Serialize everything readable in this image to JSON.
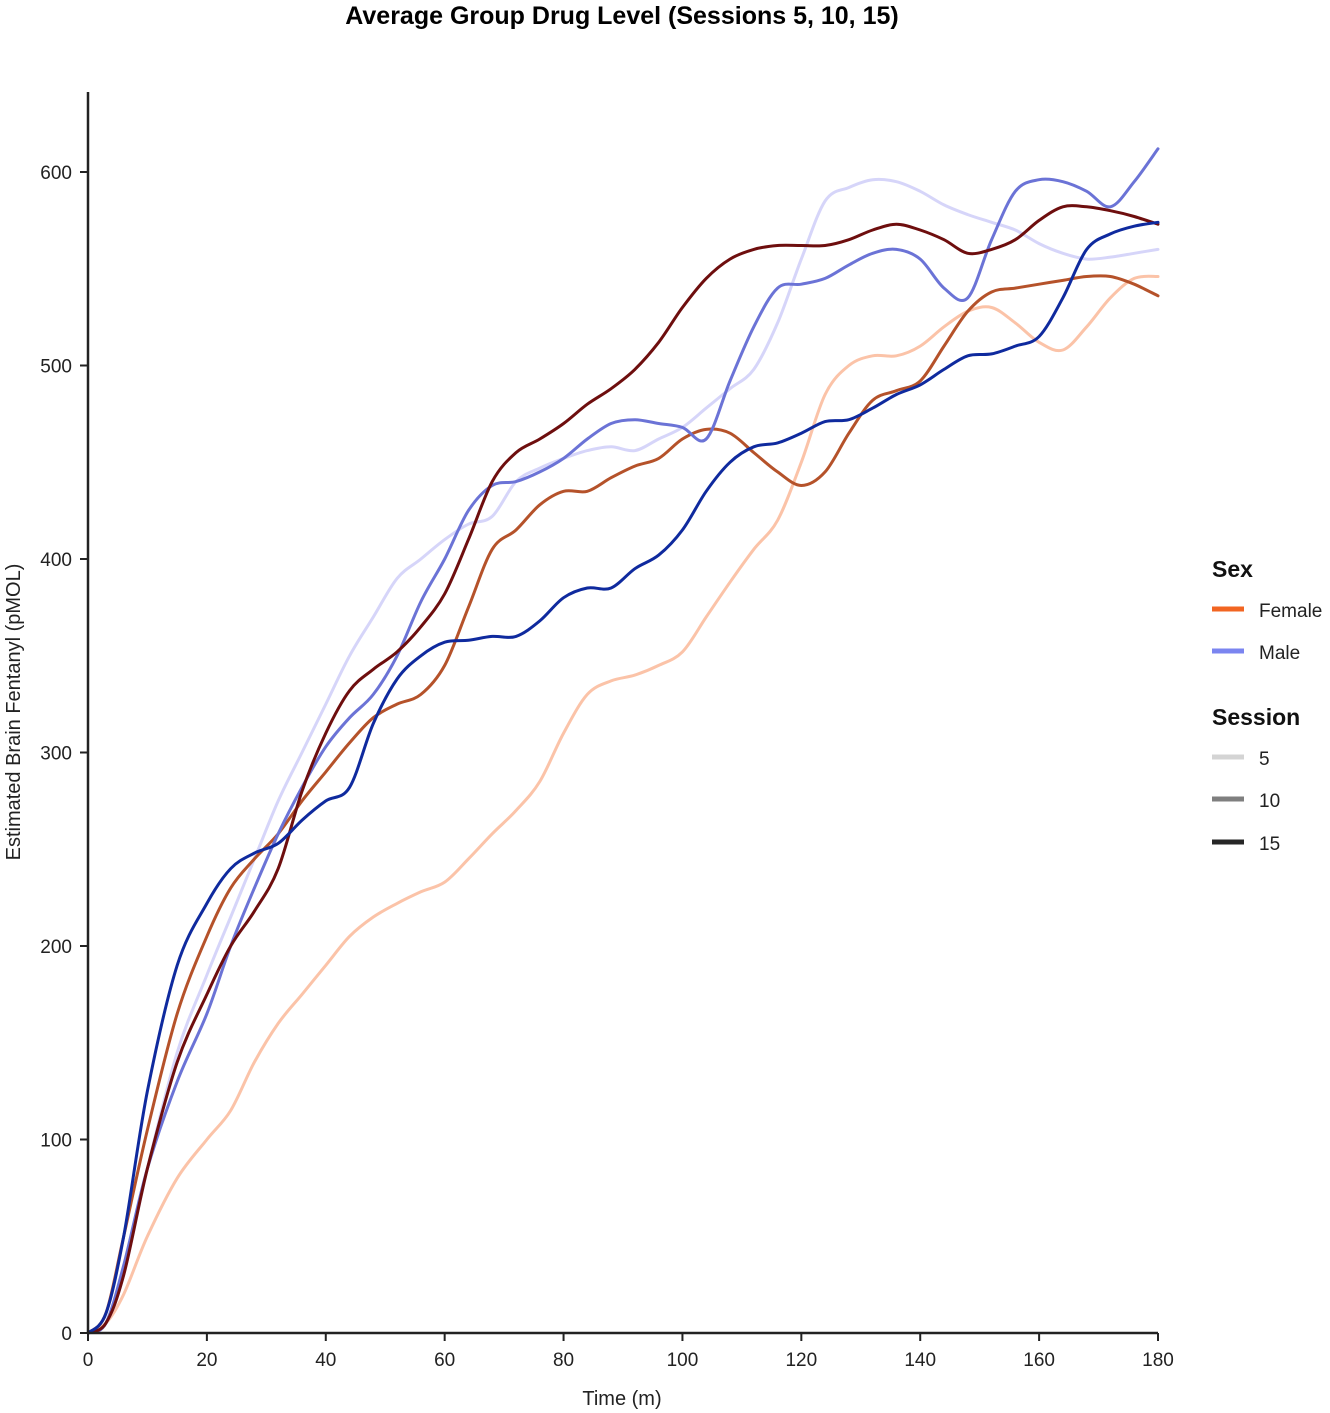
{
  "chart_data": {
    "type": "line",
    "title": "Average Group Drug Level (Sessions 5, 10, 15)",
    "xlabel": "Time (m)",
    "ylabel": "Estimated Brain Fentanyl (pMOL)",
    "xlim": [
      0,
      180
    ],
    "ylim": [
      0,
      640
    ],
    "xticks": [
      0,
      20,
      40,
      60,
      80,
      100,
      120,
      140,
      160,
      180
    ],
    "yticks": [
      0,
      100,
      200,
      300,
      400,
      500,
      600
    ],
    "grid": false,
    "legend_position": "right",
    "legend": {
      "sex_title": "Sex",
      "sex_items": [
        {
          "label": "Female",
          "color": "#f26522"
        },
        {
          "label": "Male",
          "color": "#7b85f0"
        }
      ],
      "session_title": "Session",
      "session_items": [
        {
          "label": "5",
          "color": "#d4d4d4"
        },
        {
          "label": "10",
          "color": "#7f7f7f"
        },
        {
          "label": "15",
          "color": "#262626"
        }
      ]
    },
    "series": [
      {
        "sex": "Female",
        "session": "5",
        "color": "#fbc3a8",
        "x": [
          0,
          3,
          6,
          10,
          15,
          20,
          24,
          28,
          32,
          36,
          40,
          44,
          48,
          52,
          56,
          60,
          64,
          68,
          72,
          76,
          80,
          84,
          88,
          92,
          96,
          100,
          104,
          108,
          112,
          116,
          120,
          124,
          128,
          132,
          136,
          140,
          144,
          148,
          152,
          156,
          160,
          164,
          168,
          172,
          176,
          180
        ],
        "y": [
          0,
          5,
          20,
          50,
          80,
          100,
          115,
          140,
          160,
          175,
          190,
          205,
          215,
          222,
          228,
          233,
          245,
          258,
          270,
          285,
          310,
          330,
          337,
          340,
          345,
          352,
          370,
          388,
          405,
          420,
          450,
          485,
          500,
          505,
          505,
          510,
          520,
          528,
          530,
          522,
          512,
          508,
          520,
          535,
          545,
          546
        ]
      },
      {
        "sex": "Male",
        "session": "5",
        "color": "#d6d5f9",
        "x": [
          0,
          3,
          6,
          10,
          15,
          20,
          24,
          28,
          32,
          36,
          40,
          44,
          48,
          52,
          56,
          60,
          64,
          68,
          72,
          76,
          80,
          84,
          88,
          92,
          96,
          100,
          104,
          108,
          112,
          116,
          120,
          124,
          128,
          132,
          136,
          140,
          144,
          148,
          152,
          156,
          160,
          164,
          168,
          172,
          176,
          180
        ],
        "y": [
          0,
          5,
          30,
          85,
          145,
          185,
          215,
          245,
          275,
          300,
          325,
          350,
          370,
          390,
          400,
          410,
          418,
          422,
          440,
          447,
          452,
          456,
          458,
          456,
          462,
          468,
          478,
          488,
          498,
          522,
          555,
          585,
          592,
          596,
          595,
          590,
          583,
          578,
          574,
          570,
          563,
          558,
          555,
          556,
          558,
          560
        ]
      },
      {
        "sex": "Female",
        "session": "10",
        "color": "#b5522a",
        "x": [
          0,
          3,
          6,
          10,
          15,
          20,
          24,
          28,
          32,
          36,
          40,
          44,
          48,
          52,
          56,
          60,
          64,
          68,
          72,
          76,
          80,
          84,
          88,
          92,
          96,
          100,
          104,
          108,
          112,
          116,
          120,
          124,
          128,
          132,
          136,
          140,
          144,
          148,
          152,
          156,
          160,
          164,
          168,
          172,
          176,
          180
        ],
        "y": [
          0,
          10,
          50,
          105,
          165,
          205,
          230,
          245,
          258,
          275,
          290,
          305,
          318,
          325,
          330,
          345,
          375,
          405,
          415,
          428,
          435,
          435,
          442,
          448,
          452,
          462,
          467,
          465,
          455,
          445,
          438,
          445,
          465,
          482,
          487,
          492,
          510,
          528,
          538,
          540,
          542,
          544,
          546,
          546,
          542,
          536
        ]
      },
      {
        "sex": "Male",
        "session": "10",
        "color": "#6b73d6",
        "x": [
          0,
          3,
          6,
          10,
          15,
          20,
          24,
          28,
          32,
          36,
          40,
          44,
          48,
          52,
          56,
          60,
          64,
          68,
          72,
          76,
          80,
          84,
          88,
          92,
          96,
          100,
          104,
          108,
          112,
          116,
          120,
          124,
          128,
          132,
          136,
          140,
          144,
          148,
          152,
          156,
          160,
          164,
          168,
          172,
          176,
          180
        ],
        "y": [
          0,
          5,
          35,
          85,
          130,
          165,
          200,
          230,
          258,
          282,
          303,
          318,
          330,
          350,
          378,
          400,
          425,
          438,
          440,
          445,
          452,
          462,
          470,
          472,
          470,
          468,
          462,
          492,
          520,
          540,
          542,
          545,
          552,
          558,
          560,
          555,
          540,
          535,
          565,
          590,
          596,
          595,
          590,
          582,
          595,
          612
        ]
      },
      {
        "sex": "Female",
        "session": "15",
        "color": "#6e0e0e",
        "x": [
          0,
          3,
          6,
          10,
          15,
          20,
          24,
          28,
          32,
          36,
          40,
          44,
          48,
          52,
          56,
          60,
          64,
          68,
          72,
          76,
          80,
          84,
          88,
          92,
          96,
          100,
          104,
          108,
          112,
          116,
          120,
          124,
          128,
          132,
          136,
          140,
          144,
          148,
          152,
          156,
          160,
          164,
          168,
          172,
          176,
          180
        ],
        "y": [
          0,
          5,
          30,
          85,
          140,
          175,
          200,
          218,
          240,
          280,
          310,
          332,
          343,
          352,
          365,
          382,
          410,
          440,
          455,
          462,
          470,
          480,
          488,
          498,
          512,
          530,
          545,
          555,
          560,
          562,
          562,
          562,
          565,
          570,
          573,
          570,
          565,
          558,
          560,
          565,
          575,
          582,
          582,
          580,
          577,
          573
        ]
      },
      {
        "sex": "Male",
        "session": "15",
        "color": "#0f2a9e",
        "x": [
          0,
          3,
          6,
          10,
          15,
          20,
          24,
          28,
          32,
          36,
          40,
          44,
          48,
          52,
          56,
          60,
          64,
          68,
          72,
          76,
          80,
          84,
          88,
          92,
          96,
          100,
          104,
          108,
          112,
          116,
          120,
          124,
          128,
          132,
          136,
          140,
          144,
          148,
          152,
          156,
          160,
          164,
          168,
          172,
          176,
          180
        ],
        "y": [
          0,
          10,
          50,
          125,
          190,
          222,
          240,
          248,
          253,
          265,
          275,
          282,
          315,
          338,
          350,
          357,
          358,
          360,
          360,
          368,
          380,
          385,
          385,
          395,
          402,
          415,
          435,
          450,
          458,
          460,
          465,
          471,
          472,
          478,
          485,
          490,
          498,
          505,
          506,
          510,
          515,
          535,
          560,
          568,
          572,
          574
        ]
      }
    ]
  }
}
